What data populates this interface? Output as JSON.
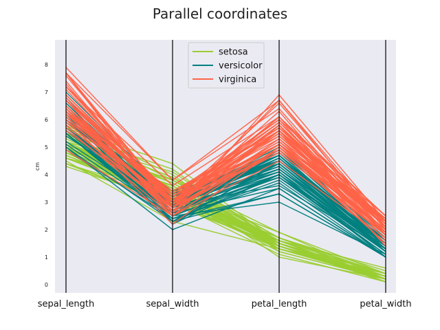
{
  "chart_data": {
    "type": "parallel_coordinates",
    "title": "Parallel coordinates",
    "ylabel": "cm",
    "ylim": [
      -0.3,
      8.9
    ],
    "yticks": [
      0,
      1,
      2,
      3,
      4,
      5,
      6,
      7,
      8
    ],
    "axes": [
      "sepal_length",
      "sepal_width",
      "petal_length",
      "petal_width"
    ],
    "legend": {
      "placement": "top-center"
    },
    "grid": false,
    "series": [
      {
        "name": "setosa",
        "color": "#9acd32",
        "lines": [
          [
            5.1,
            3.5,
            1.4,
            0.2
          ],
          [
            4.9,
            3.0,
            1.4,
            0.2
          ],
          [
            4.7,
            3.2,
            1.3,
            0.2
          ],
          [
            4.6,
            3.1,
            1.5,
            0.2
          ],
          [
            5.0,
            3.6,
            1.4,
            0.2
          ],
          [
            5.4,
            3.9,
            1.7,
            0.4
          ],
          [
            4.6,
            3.4,
            1.4,
            0.3
          ],
          [
            5.0,
            3.4,
            1.5,
            0.2
          ],
          [
            4.4,
            2.9,
            1.4,
            0.2
          ],
          [
            4.9,
            3.1,
            1.5,
            0.1
          ],
          [
            5.4,
            3.7,
            1.5,
            0.2
          ],
          [
            4.8,
            3.4,
            1.6,
            0.2
          ],
          [
            4.8,
            3.0,
            1.4,
            0.1
          ],
          [
            4.3,
            3.0,
            1.1,
            0.1
          ],
          [
            5.8,
            4.0,
            1.2,
            0.2
          ],
          [
            5.7,
            4.4,
            1.5,
            0.4
          ],
          [
            5.4,
            3.9,
            1.3,
            0.4
          ],
          [
            5.1,
            3.5,
            1.4,
            0.3
          ],
          [
            5.7,
            3.8,
            1.7,
            0.3
          ],
          [
            5.1,
            3.8,
            1.5,
            0.3
          ],
          [
            5.4,
            3.4,
            1.7,
            0.2
          ],
          [
            5.1,
            3.7,
            1.5,
            0.4
          ],
          [
            4.6,
            3.6,
            1.0,
            0.2
          ],
          [
            5.1,
            3.3,
            1.7,
            0.5
          ],
          [
            4.8,
            3.4,
            1.9,
            0.2
          ],
          [
            5.0,
            3.0,
            1.6,
            0.2
          ],
          [
            5.0,
            3.4,
            1.6,
            0.4
          ],
          [
            5.2,
            3.5,
            1.5,
            0.2
          ],
          [
            5.2,
            3.4,
            1.4,
            0.2
          ],
          [
            4.7,
            3.2,
            1.6,
            0.2
          ],
          [
            4.8,
            3.1,
            1.6,
            0.2
          ],
          [
            5.4,
            3.4,
            1.5,
            0.4
          ],
          [
            5.2,
            4.1,
            1.5,
            0.1
          ],
          [
            5.5,
            4.2,
            1.4,
            0.2
          ],
          [
            4.9,
            3.1,
            1.5,
            0.2
          ],
          [
            5.0,
            3.2,
            1.2,
            0.2
          ],
          [
            5.5,
            3.5,
            1.3,
            0.2
          ],
          [
            4.9,
            3.6,
            1.4,
            0.1
          ],
          [
            4.4,
            3.0,
            1.3,
            0.2
          ],
          [
            5.1,
            3.4,
            1.5,
            0.2
          ],
          [
            5.0,
            3.5,
            1.3,
            0.3
          ],
          [
            4.5,
            2.3,
            1.3,
            0.3
          ],
          [
            4.4,
            3.2,
            1.3,
            0.2
          ],
          [
            5.0,
            3.5,
            1.6,
            0.6
          ],
          [
            5.1,
            3.8,
            1.9,
            0.4
          ],
          [
            4.8,
            3.0,
            1.4,
            0.3
          ],
          [
            5.1,
            3.8,
            1.6,
            0.2
          ],
          [
            4.6,
            3.2,
            1.4,
            0.2
          ],
          [
            5.3,
            3.7,
            1.5,
            0.2
          ],
          [
            5.0,
            3.3,
            1.4,
            0.2
          ]
        ]
      },
      {
        "name": "versicolor",
        "color": "#008080",
        "lines": [
          [
            7.0,
            3.2,
            4.7,
            1.4
          ],
          [
            6.4,
            3.2,
            4.5,
            1.5
          ],
          [
            6.9,
            3.1,
            4.9,
            1.5
          ],
          [
            5.5,
            2.3,
            4.0,
            1.3
          ],
          [
            6.5,
            2.8,
            4.6,
            1.5
          ],
          [
            5.7,
            2.8,
            4.5,
            1.3
          ],
          [
            6.3,
            3.3,
            4.7,
            1.6
          ],
          [
            4.9,
            2.4,
            3.3,
            1.0
          ],
          [
            6.6,
            2.9,
            4.6,
            1.3
          ],
          [
            5.2,
            2.7,
            3.9,
            1.4
          ],
          [
            5.0,
            2.0,
            3.5,
            1.0
          ],
          [
            5.9,
            3.0,
            4.2,
            1.5
          ],
          [
            6.0,
            2.2,
            4.0,
            1.0
          ],
          [
            6.1,
            2.9,
            4.7,
            1.4
          ],
          [
            5.6,
            2.9,
            3.6,
            1.3
          ],
          [
            6.7,
            3.1,
            4.4,
            1.4
          ],
          [
            5.6,
            3.0,
            4.5,
            1.5
          ],
          [
            5.8,
            2.7,
            4.1,
            1.0
          ],
          [
            6.2,
            2.2,
            4.5,
            1.5
          ],
          [
            5.6,
            2.5,
            3.9,
            1.1
          ],
          [
            5.9,
            3.2,
            4.8,
            1.8
          ],
          [
            6.1,
            2.8,
            4.0,
            1.3
          ],
          [
            6.3,
            2.5,
            4.9,
            1.5
          ],
          [
            6.1,
            2.8,
            4.7,
            1.2
          ],
          [
            6.4,
            2.9,
            4.3,
            1.3
          ],
          [
            6.6,
            3.0,
            4.4,
            1.4
          ],
          [
            6.8,
            2.8,
            4.8,
            1.4
          ],
          [
            6.7,
            3.0,
            5.0,
            1.7
          ],
          [
            6.0,
            2.9,
            4.5,
            1.5
          ],
          [
            5.7,
            2.6,
            3.5,
            1.0
          ],
          [
            5.5,
            2.4,
            3.8,
            1.1
          ],
          [
            5.5,
            2.4,
            3.7,
            1.0
          ],
          [
            5.8,
            2.7,
            3.9,
            1.2
          ],
          [
            6.0,
            2.7,
            5.1,
            1.6
          ],
          [
            5.4,
            3.0,
            4.5,
            1.5
          ],
          [
            6.0,
            3.4,
            4.5,
            1.6
          ],
          [
            6.7,
            3.1,
            4.7,
            1.5
          ],
          [
            6.3,
            2.3,
            4.4,
            1.3
          ],
          [
            5.6,
            3.0,
            4.1,
            1.3
          ],
          [
            5.5,
            2.5,
            4.0,
            1.3
          ],
          [
            5.5,
            2.6,
            4.4,
            1.2
          ],
          [
            6.1,
            3.0,
            4.6,
            1.4
          ],
          [
            5.8,
            2.6,
            4.0,
            1.2
          ],
          [
            5.0,
            2.3,
            3.3,
            1.0
          ],
          [
            5.6,
            2.7,
            4.2,
            1.3
          ],
          [
            5.7,
            3.0,
            4.2,
            1.2
          ],
          [
            5.7,
            2.9,
            4.2,
            1.3
          ],
          [
            6.2,
            2.9,
            4.3,
            1.3
          ],
          [
            5.1,
            2.5,
            3.0,
            1.1
          ],
          [
            5.7,
            2.8,
            4.1,
            1.3
          ]
        ]
      },
      {
        "name": "virginica",
        "color": "#ff6347",
        "lines": [
          [
            6.3,
            3.3,
            6.0,
            2.5
          ],
          [
            5.8,
            2.7,
            5.1,
            1.9
          ],
          [
            7.1,
            3.0,
            5.9,
            2.1
          ],
          [
            6.3,
            2.9,
            5.6,
            1.8
          ],
          [
            6.5,
            3.0,
            5.8,
            2.2
          ],
          [
            7.6,
            3.0,
            6.6,
            2.1
          ],
          [
            4.9,
            2.5,
            4.5,
            1.7
          ],
          [
            7.3,
            2.9,
            6.3,
            1.8
          ],
          [
            6.7,
            2.5,
            5.8,
            1.8
          ],
          [
            7.2,
            3.6,
            6.1,
            2.5
          ],
          [
            6.5,
            3.2,
            5.1,
            2.0
          ],
          [
            6.4,
            2.7,
            5.3,
            1.9
          ],
          [
            6.8,
            3.0,
            5.5,
            2.1
          ],
          [
            5.7,
            2.5,
            5.0,
            2.0
          ],
          [
            5.8,
            2.8,
            5.1,
            2.4
          ],
          [
            6.4,
            3.2,
            5.3,
            2.3
          ],
          [
            6.5,
            3.0,
            5.5,
            1.8
          ],
          [
            7.7,
            3.8,
            6.7,
            2.2
          ],
          [
            7.7,
            2.6,
            6.9,
            2.3
          ],
          [
            6.0,
            2.2,
            5.0,
            1.5
          ],
          [
            6.9,
            3.2,
            5.7,
            2.3
          ],
          [
            5.6,
            2.8,
            4.9,
            2.0
          ],
          [
            7.7,
            2.8,
            6.7,
            2.0
          ],
          [
            6.3,
            2.7,
            4.9,
            1.8
          ],
          [
            6.7,
            3.3,
            5.7,
            2.1
          ],
          [
            7.2,
            3.2,
            6.0,
            1.8
          ],
          [
            6.2,
            2.8,
            4.8,
            1.8
          ],
          [
            6.1,
            3.0,
            4.9,
            1.8
          ],
          [
            6.4,
            2.8,
            5.6,
            2.1
          ],
          [
            7.2,
            3.0,
            5.8,
            1.6
          ],
          [
            7.4,
            2.8,
            6.1,
            1.9
          ],
          [
            7.9,
            3.8,
            6.4,
            2.0
          ],
          [
            6.4,
            2.8,
            5.6,
            2.2
          ],
          [
            6.3,
            2.8,
            5.1,
            1.5
          ],
          [
            6.1,
            2.6,
            5.6,
            1.4
          ],
          [
            7.7,
            3.0,
            6.1,
            2.3
          ],
          [
            6.3,
            3.4,
            5.6,
            2.4
          ],
          [
            6.4,
            3.1,
            5.5,
            1.8
          ],
          [
            6.0,
            3.0,
            4.8,
            1.8
          ],
          [
            6.9,
            3.1,
            5.4,
            2.1
          ],
          [
            6.7,
            3.1,
            5.6,
            2.4
          ],
          [
            6.9,
            3.1,
            5.1,
            2.3
          ],
          [
            5.8,
            2.7,
            5.1,
            1.9
          ],
          [
            6.8,
            3.2,
            5.9,
            2.3
          ],
          [
            6.7,
            3.3,
            5.7,
            2.5
          ],
          [
            6.7,
            3.0,
            5.2,
            2.3
          ],
          [
            6.3,
            2.5,
            5.0,
            1.9
          ],
          [
            6.5,
            3.0,
            5.2,
            2.0
          ],
          [
            6.2,
            3.4,
            5.4,
            2.3
          ],
          [
            5.9,
            3.0,
            5.1,
            1.8
          ]
        ]
      }
    ]
  }
}
